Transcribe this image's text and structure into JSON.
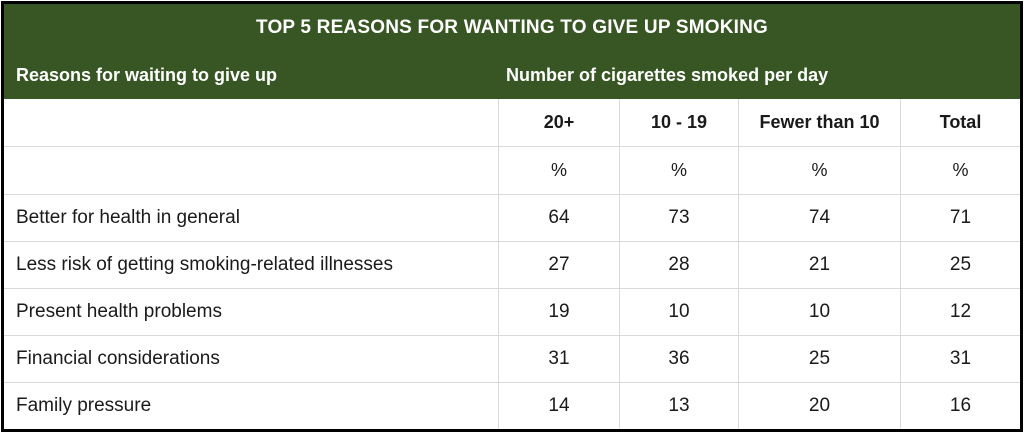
{
  "colors": {
    "header_bg": "#375623",
    "header_text": "#ffffff",
    "body_text": "#1a1a1a",
    "gridline": "#d9d9d9",
    "outer_border": "#000000",
    "body_bg": "#ffffff"
  },
  "table": {
    "title": "TOP 5 REASONS FOR WANTING TO GIVE UP SMOKING",
    "left_header": "Reasons for waiting to give up",
    "right_header": "Number of cigarettes smoked per day",
    "columns": [
      "20+",
      "10 - 19",
      "Fewer than 10",
      "Total"
    ],
    "units": [
      "%",
      "%",
      "%",
      "%"
    ],
    "rows": [
      {
        "label": "Better for health in general",
        "values": [
          "64",
          "73",
          "74",
          "71"
        ]
      },
      {
        "label": "Less risk of getting smoking-related illnesses",
        "values": [
          "27",
          "28",
          "21",
          "25"
        ]
      },
      {
        "label": "Present health problems",
        "values": [
          "19",
          "10",
          "10",
          "12"
        ]
      },
      {
        "label": "Financial considerations",
        "values": [
          "31",
          "36",
          "25",
          "31"
        ]
      },
      {
        "label": "Family pressure",
        "values": [
          "14",
          "13",
          "20",
          "16"
        ]
      }
    ]
  },
  "chart_data": {
    "type": "table",
    "title": "TOP 5 REASONS FOR WANTING TO GIVE UP SMOKING",
    "row_group_header": "Reasons for waiting to give up",
    "column_group_header": "Number of cigarettes smoked per day",
    "unit": "%",
    "categories": [
      "Better for health in general",
      "Less risk of getting smoking-related illnesses",
      "Present health problems",
      "Financial considerations",
      "Family pressure"
    ],
    "series": [
      {
        "name": "20+",
        "values": [
          64,
          27,
          19,
          31,
          14
        ]
      },
      {
        "name": "10 - 19",
        "values": [
          73,
          28,
          10,
          36,
          13
        ]
      },
      {
        "name": "Fewer than 10",
        "values": [
          74,
          21,
          10,
          25,
          20
        ]
      },
      {
        "name": "Total",
        "values": [
          71,
          25,
          12,
          31,
          16
        ]
      }
    ]
  }
}
